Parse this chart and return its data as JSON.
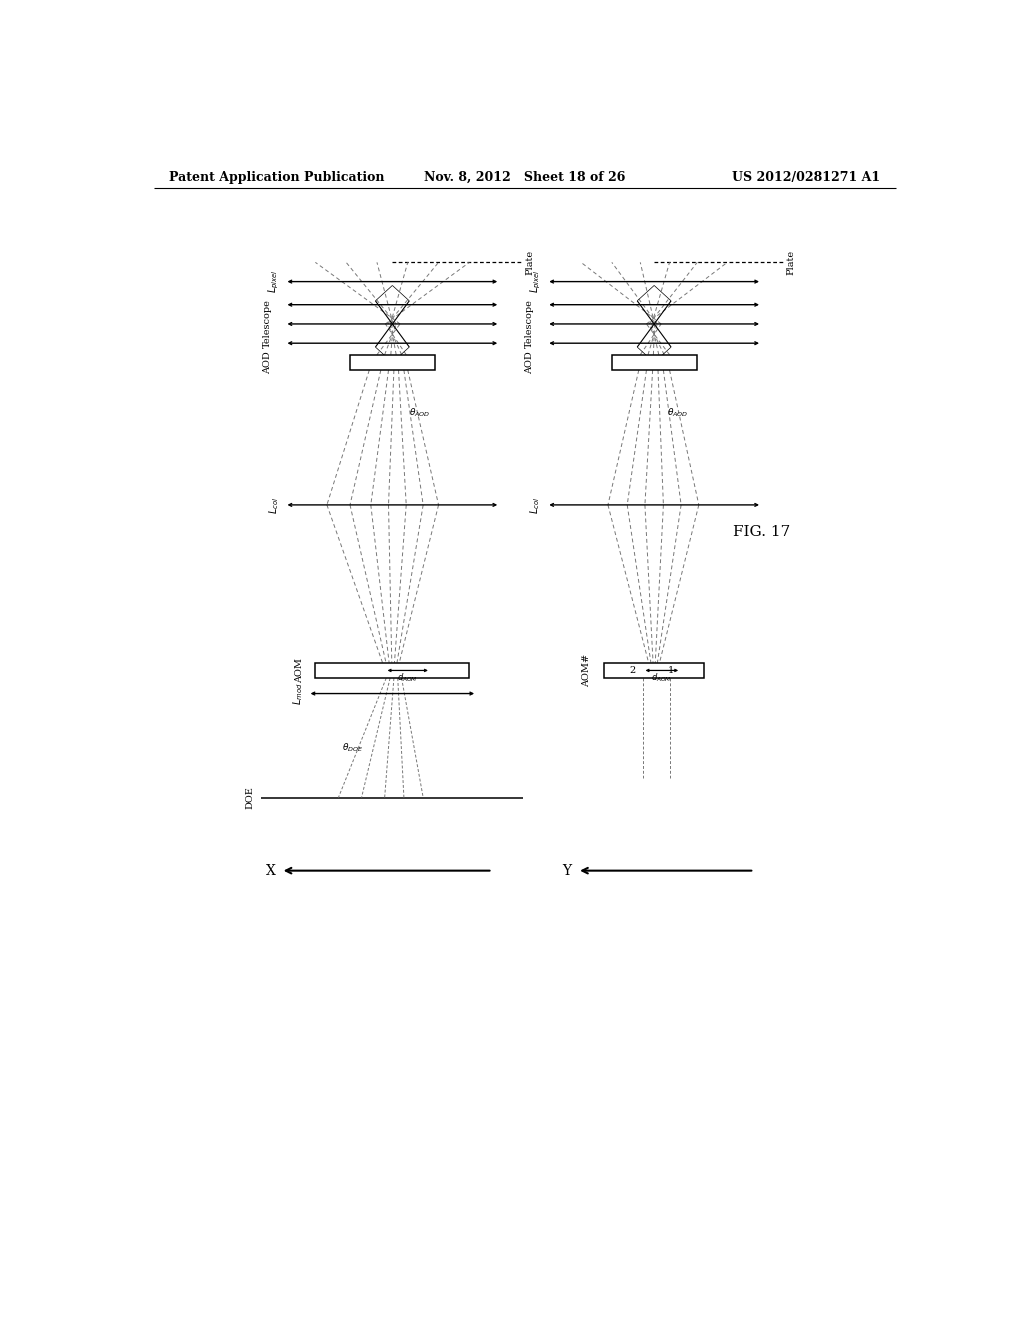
{
  "title_left": "Patent Application Publication",
  "title_mid": "Nov. 8, 2012   Sheet 18 of 26",
  "title_right": "US 2012/0281271 A1",
  "fig_label": "FIG. 17",
  "bg_color": "#ffffff",
  "header_fontsize": 9,
  "label_fontsize": 7
}
